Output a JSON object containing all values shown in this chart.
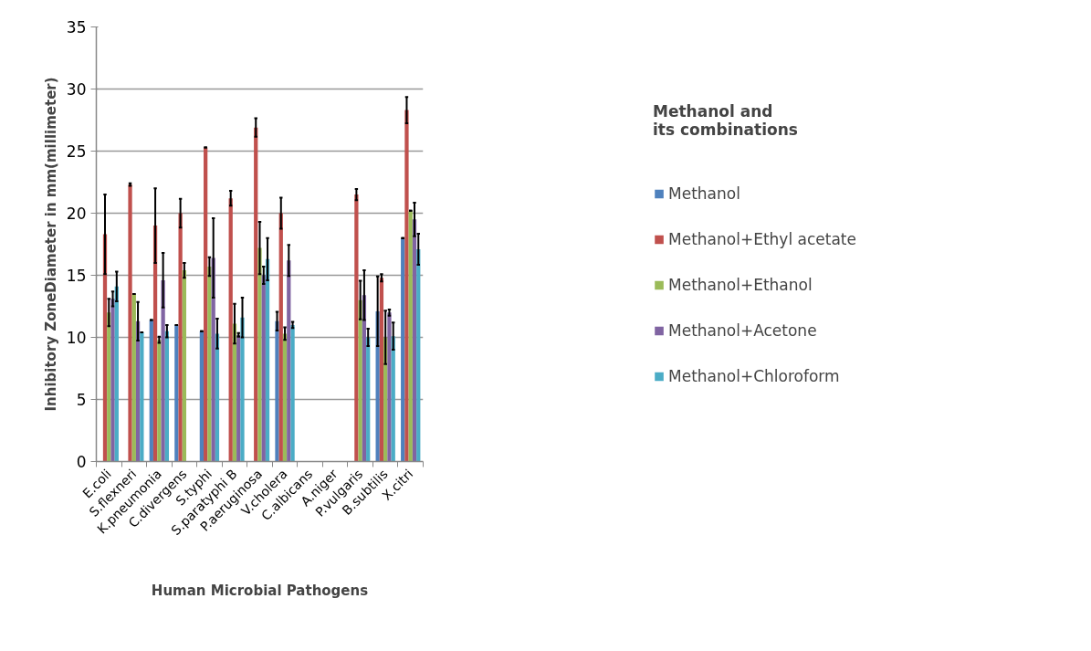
{
  "chart_data": {
    "type": "bar",
    "xlabel": "Human Microbial Pathogens",
    "ylabel": "Inhibitory ZoneDiameter in mm(millimeter)",
    "legend_title": "Methanol and its combinations",
    "categories": [
      "E.coli",
      "S.flexneri",
      "K.pneumonia",
      "C.divergens",
      "S.typhi",
      "S.paratyphi B",
      "P.aeruginosa",
      "V.cholera",
      "C.albicans",
      "A.niger",
      "P.vulgaris",
      "B.subtilis",
      "X.citri"
    ],
    "series": [
      {
        "name": "Methanol",
        "color": "#4f81bd",
        "values": [
          0,
          0,
          11.4,
          11.0,
          10.5,
          0,
          0,
          11.3,
          0,
          0,
          0,
          12.1,
          18.0
        ],
        "errors": [
          null,
          null,
          0,
          0,
          0,
          null,
          null,
          0.75,
          null,
          null,
          null,
          2.8,
          0
        ]
      },
      {
        "name": "Methanol+Ethyl acetate",
        "color": "#c0504d",
        "values": [
          18.3,
          22.3,
          19.0,
          20.0,
          25.3,
          21.2,
          26.9,
          20.0,
          0,
          0,
          21.5,
          14.8,
          28.3
        ],
        "errors": [
          3.2,
          0.1,
          3.0,
          1.15,
          0,
          0.6,
          0.75,
          1.25,
          null,
          null,
          0.45,
          0.3,
          1.05
        ]
      },
      {
        "name": "Methanol+Ethanol",
        "color": "#9bbb59",
        "values": [
          12.0,
          13.5,
          9.8,
          15.4,
          15.7,
          11.1,
          17.2,
          10.3,
          0,
          0,
          13.0,
          10.0,
          20.2
        ],
        "errors": [
          1.1,
          0,
          0.25,
          0.6,
          0.75,
          1.6,
          2.1,
          0.5,
          null,
          null,
          1.55,
          2.15,
          0
        ]
      },
      {
        "name": "Methanol+Acetone",
        "color": "#8064a2",
        "values": [
          13.1,
          11.3,
          14.6,
          0,
          16.4,
          10.2,
          15.0,
          16.2,
          0,
          0,
          13.4,
          12.0,
          19.5
        ],
        "errors": [
          0.6,
          1.55,
          2.2,
          null,
          3.2,
          0.15,
          0.7,
          1.25,
          null,
          null,
          2.0,
          0.25,
          1.35
        ]
      },
      {
        "name": "Methanol+Chloroform",
        "color": "#4bacc6",
        "values": [
          14.1,
          10.4,
          10.5,
          0,
          10.3,
          11.6,
          16.3,
          11.0,
          0,
          0,
          10.0,
          10.1,
          17.1
        ],
        "errors": [
          1.2,
          0,
          0.5,
          null,
          1.2,
          1.6,
          1.7,
          0.25,
          null,
          null,
          0.7,
          1.1,
          1.25
        ]
      }
    ],
    "ylim": [
      0,
      35
    ],
    "yticks": [
      0,
      5,
      10,
      15,
      20,
      25,
      30,
      35
    ],
    "grid": "y",
    "legend": "right"
  }
}
